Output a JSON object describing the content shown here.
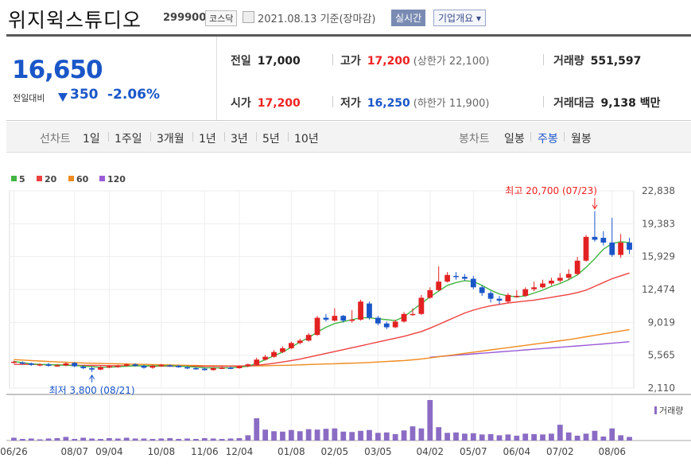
{
  "header": {
    "title": "위지윅스튜디오",
    "code": "299900",
    "market": "코스닥",
    "date": "2021.08.13 기준(장마감)",
    "realtime": "실시간",
    "company": "기업개요 ▾"
  },
  "price": {
    "current": "16,650",
    "diff_label": "전일대비",
    "diff": "350",
    "rate": "-2.06%"
  },
  "info": {
    "prev_label": "전일",
    "prev": "17,000",
    "open_label": "시가",
    "open": "17,200",
    "high_label": "고가",
    "high": "17,200",
    "upper": "(상한가 22,100)",
    "low_label": "저가",
    "low": "16,250",
    "lower": "(하한가 11,900)",
    "volume_label": "거래량",
    "volume": "551,597",
    "amount_label": "거래대금",
    "amount": "9,138 백만"
  },
  "tabs": {
    "line_label": "선차트",
    "line": [
      "1일",
      "1주일",
      "3개월",
      "1년",
      "3년",
      "5년",
      "10년"
    ],
    "candle_label": "봉차트",
    "candle": [
      "일봉",
      "주봉",
      "월봉"
    ],
    "candle_active": "주봉"
  },
  "colors": {
    "up": "#e22222",
    "down": "#1a56c8",
    "ma5": "#43b543",
    "ma20": "#ee4040",
    "ma60": "#f08a1e",
    "ma120": "#9a5bd6",
    "volume": "#8b6cc4"
  },
  "chart_data": {
    "type": "candlestick",
    "legend": [
      "5",
      "20",
      "60",
      "120"
    ],
    "y_ticks": [
      "22,838",
      "19,383",
      "15,929",
      "12,474",
      "9,019",
      "5,565",
      "2,110"
    ],
    "ylim": [
      2110,
      22838
    ],
    "x_labels": [
      "06/26",
      "08/07",
      "09/04",
      "10/08",
      "11/06",
      "12/04",
      "01/08",
      "02/05",
      "03/05",
      "04/02",
      "05/07",
      "06/04",
      "07/02",
      "08/06"
    ],
    "high_note": "최고 20,700 (07/23)",
    "low_note": "최저 3,800 (08/21)",
    "volume_label": "거래량",
    "candles": [
      [
        4850,
        4880,
        5000,
        4700
      ],
      [
        4800,
        4700,
        4900,
        4600
      ],
      [
        4700,
        4550,
        4800,
        4450
      ],
      [
        4500,
        4600,
        4700,
        4400
      ],
      [
        4600,
        4450,
        4750,
        4350
      ],
      [
        4450,
        4500,
        4600,
        4350
      ],
      [
        4500,
        4700,
        4800,
        4400
      ],
      [
        4750,
        4400,
        4850,
        4300
      ],
      [
        4350,
        4200,
        4500,
        4100
      ],
      [
        4200,
        4050,
        4350,
        3800
      ],
      [
        4050,
        4300,
        4400,
        4000
      ],
      [
        4300,
        4400,
        4500,
        4200
      ],
      [
        4350,
        4450,
        4550,
        4250
      ],
      [
        4450,
        4600,
        4700,
        4350
      ],
      [
        4600,
        4450,
        4700,
        4350
      ],
      [
        4450,
        4250,
        4550,
        4150
      ],
      [
        4250,
        4450,
        4550,
        4150
      ],
      [
        4450,
        4550,
        4650,
        4350
      ],
      [
        4500,
        4450,
        4600,
        4350
      ],
      [
        4450,
        4300,
        4550,
        4250
      ],
      [
        4300,
        4200,
        4400,
        4100
      ],
      [
        4200,
        4150,
        4300,
        4050
      ],
      [
        4150,
        4000,
        4250,
        3950
      ],
      [
        4000,
        4200,
        4300,
        3950
      ],
      [
        4200,
        4250,
        4350,
        4100
      ],
      [
        4250,
        4200,
        4350,
        4100
      ],
      [
        4200,
        4400,
        4500,
        4150
      ],
      [
        4400,
        4600,
        4700,
        4300
      ],
      [
        4550,
        5100,
        5300,
        4500
      ],
      [
        5100,
        5400,
        5600,
        5000
      ],
      [
        5400,
        5900,
        6100,
        5300
      ],
      [
        5900,
        6300,
        6500,
        5800
      ],
      [
        6300,
        6850,
        7000,
        6200
      ],
      [
        6850,
        7100,
        7300,
        6700
      ],
      [
        7100,
        7700,
        7900,
        7000
      ],
      [
        7700,
        9500,
        9700,
        7600
      ],
      [
        9500,
        9300,
        9900,
        9100
      ],
      [
        9200,
        9700,
        10500,
        9100
      ],
      [
        9700,
        9200,
        9800,
        9000
      ],
      [
        9300,
        9300,
        10300,
        9000
      ],
      [
        9300,
        11200,
        11400,
        9200
      ],
      [
        11000,
        9500,
        11200,
        9300
      ],
      [
        9500,
        8900,
        9700,
        8700
      ],
      [
        8900,
        8500,
        9100,
        8300
      ],
      [
        8500,
        9100,
        9300,
        8400
      ],
      [
        9100,
        9900,
        10100,
        9000
      ],
      [
        9900,
        9900,
        10500,
        9700
      ],
      [
        9900,
        11600,
        11900,
        9800
      ],
      [
        11600,
        12400,
        12700,
        11500
      ],
      [
        12400,
        13300,
        14900,
        12300
      ],
      [
        13300,
        14000,
        14300,
        13200
      ],
      [
        13900,
        13800,
        14300,
        13500
      ],
      [
        13800,
        13600,
        14100,
        13400
      ],
      [
        13600,
        12700,
        13900,
        12500
      ],
      [
        12700,
        12100,
        12900,
        11800
      ],
      [
        12100,
        11500,
        12300,
        11100
      ],
      [
        11500,
        11300,
        11800,
        10900
      ],
      [
        11200,
        11900,
        12100,
        11100
      ],
      [
        11800,
        11800,
        12400,
        11600
      ],
      [
        11800,
        12500,
        12700,
        11700
      ],
      [
        12500,
        12700,
        13300,
        12300
      ],
      [
        12700,
        13100,
        13500,
        12600
      ],
      [
        13100,
        13400,
        13700,
        12900
      ],
      [
        13400,
        13700,
        14200,
        13200
      ],
      [
        13700,
        14100,
        14600,
        13500
      ],
      [
        14100,
        15500,
        15900,
        14000
      ],
      [
        15500,
        18000,
        18200,
        15400
      ],
      [
        18000,
        17700,
        20700,
        17500
      ],
      [
        17900,
        17400,
        18600,
        17100
      ],
      [
        17400,
        16100,
        20000,
        15900
      ],
      [
        16100,
        17400,
        18300,
        15800
      ],
      [
        17400,
        16650,
        17900,
        16200
      ]
    ],
    "volumes": [
      0.07,
      0.04,
      0.05,
      0.03,
      0.05,
      0.06,
      0.09,
      0.04,
      0.07,
      0.05,
      0.04,
      0.06,
      0.05,
      0.07,
      0.05,
      0.05,
      0.04,
      0.05,
      0.06,
      0.04,
      0.05,
      0.04,
      0.06,
      0.05,
      0.04,
      0.05,
      0.06,
      0.13,
      0.55,
      0.27,
      0.23,
      0.22,
      0.26,
      0.23,
      0.28,
      0.27,
      0.29,
      0.3,
      0.22,
      0.21,
      0.24,
      0.26,
      0.19,
      0.2,
      0.16,
      0.25,
      0.35,
      0.3,
      1.0,
      0.33,
      0.19,
      0.2,
      0.17,
      0.18,
      0.15,
      0.16,
      0.13,
      0.15,
      0.12,
      0.17,
      0.16,
      0.15,
      0.17,
      0.39,
      0.2,
      0.12,
      0.17,
      0.24,
      0.1,
      0.3,
      0.13,
      0.09
    ],
    "ma5": [
      4900,
      4780,
      4650,
      4600,
      4580,
      4550,
      4500,
      4480,
      4420,
      4350,
      4300,
      4300,
      4350,
      4400,
      4450,
      4450,
      4450,
      4450,
      4450,
      4420,
      4380,
      4300,
      4250,
      4230,
      4230,
      4250,
      4300,
      4400,
      4700,
      5100,
      5500,
      5900,
      6400,
      6950,
      7400,
      8000,
      8500,
      8900,
      9100,
      9300,
      9500,
      9500,
      9400,
      9300,
      9200,
      9600,
      10300,
      11000,
      11700,
      12300,
      12900,
      13200,
      13400,
      13300,
      12900,
      12400,
      12000,
      11800,
      11700,
      11800,
      12100,
      12400,
      12800,
      13100,
      13500,
      14000,
      14800,
      15700,
      16700,
      17300,
      17500,
      17400
    ],
    "ma20": [
      4600,
      4600,
      4600,
      4580,
      4560,
      4550,
      4540,
      4520,
      4500,
      4490,
      4480,
      4470,
      4460,
      4450,
      4440,
      4430,
      4420,
      4420,
      4410,
      4400,
      4400,
      4400,
      4400,
      4400,
      4410,
      4420,
      4430,
      4450,
      4500,
      4600,
      4720,
      4850,
      5000,
      5150,
      5350,
      5550,
      5750,
      5950,
      6150,
      6350,
      6550,
      6750,
      6950,
      7150,
      7350,
      7550,
      7800,
      8050,
      8400,
      8800,
      9200,
      9600,
      10000,
      10300,
      10550,
      10750,
      10900,
      11050,
      11150,
      11250,
      11350,
      11500,
      11650,
      11800,
      11950,
      12150,
      12400,
      12800,
      13200,
      13600,
      13900,
      14200
    ],
    "ma60": [
      5100,
      5050,
      5000,
      4950,
      4900,
      4860,
      4820,
      4780,
      4750,
      4720,
      4700,
      4680,
      4660,
      4640,
      4620,
      4600,
      4580,
      4560,
      4540,
      4520,
      4500,
      4480,
      4460,
      4450,
      4440,
      4430,
      4430,
      4430,
      4440,
      4460,
      4480,
      4500,
      4520,
      4550,
      4580,
      4610,
      4640,
      4670,
      4700,
      4730,
      4760,
      4800,
      4850,
      4900,
      4950,
      5000,
      5080,
      5170,
      5280,
      5400,
      5520,
      5640,
      5760,
      5880,
      6000,
      6120,
      6240,
      6360,
      6480,
      6600,
      6720,
      6840,
      6960,
      7080,
      7200,
      7350,
      7500,
      7650,
      7800,
      7950,
      8100,
      8250
    ],
    "ma120": [
      null,
      null,
      null,
      null,
      null,
      null,
      null,
      null,
      null,
      null,
      null,
      null,
      null,
      null,
      null,
      null,
      null,
      null,
      null,
      null,
      null,
      null,
      null,
      null,
      null,
      null,
      null,
      null,
      null,
      null,
      null,
      null,
      null,
      null,
      null,
      null,
      null,
      null,
      null,
      null,
      null,
      null,
      null,
      null,
      null,
      null,
      null,
      null,
      5350,
      5420,
      5490,
      5560,
      5630,
      5700,
      5770,
      5840,
      5910,
      5980,
      6050,
      6120,
      6190,
      6260,
      6330,
      6400,
      6470,
      6540,
      6610,
      6680,
      6750,
      6820,
      6900,
      6980
    ]
  }
}
